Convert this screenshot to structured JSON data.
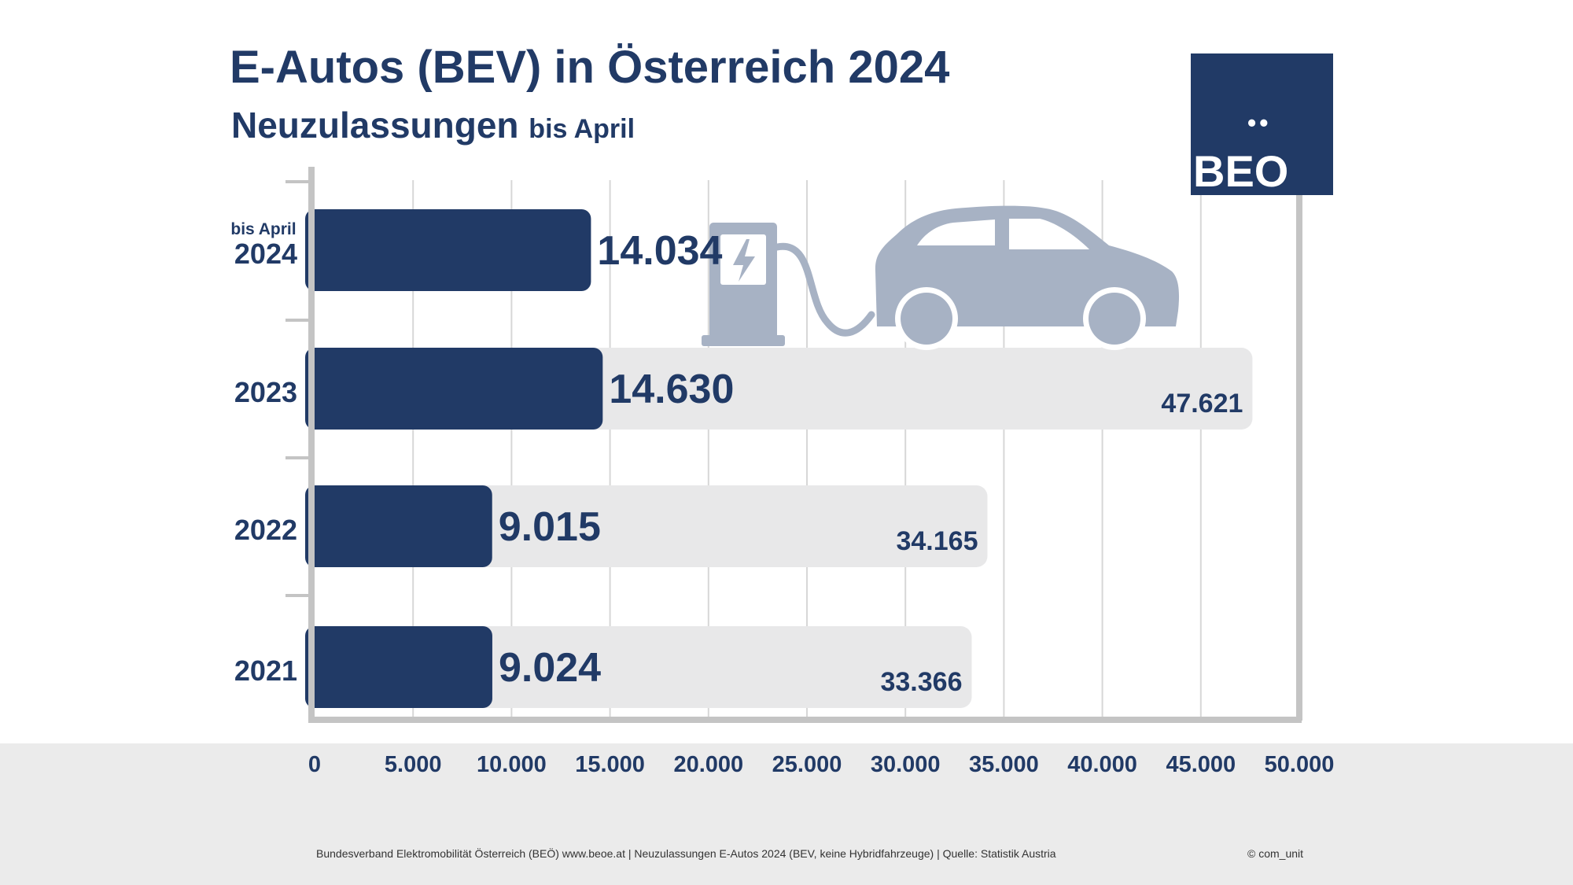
{
  "header": {
    "title": "E-Autos (BEV) in Österreich 2024",
    "subtitle": "Neuzulassungen",
    "subtitle_small": "bis April"
  },
  "logo": {
    "text": "BEO",
    "dots": "••"
  },
  "chart_data": {
    "type": "bar",
    "orientation": "horizontal",
    "categories": [
      "2024",
      "2023",
      "2022",
      "2021"
    ],
    "category_sublabels": [
      "bis April",
      "",
      "",
      ""
    ],
    "series": [
      {
        "values": [
          14034,
          14630,
          9015,
          9024
        ],
        "labels": [
          "14.034",
          "14.630",
          "9.015",
          "9.024"
        ],
        "color": "#213a66"
      },
      {
        "values": [
          null,
          47621,
          34165,
          33366
        ],
        "labels": [
          "",
          "47.621",
          "34.165",
          "33.366"
        ],
        "color": "#e8e8e9"
      }
    ],
    "xlim": [
      0,
      50000
    ],
    "xticks": [
      0,
      5000,
      10000,
      15000,
      20000,
      25000,
      30000,
      35000,
      40000,
      45000,
      50000
    ],
    "xtick_labels": [
      "0",
      "5.000",
      "10.000",
      "15.000",
      "20.000",
      "25.000",
      "30.000",
      "35.000",
      "40.000",
      "45.000",
      "50.000"
    ],
    "grid": true
  },
  "footer": {
    "source": "Bundesverband Elektromobilität Österreich (BEÖ) www.beoe.at | Neuzulassungen E-Autos 2024 (BEV, keine Hybridfahrzeuge) | Quelle: Statistik Austria",
    "copyright": "© com_unit"
  },
  "colors": {
    "primary": "#213a66",
    "track": "#e8e8e9",
    "grid": "#d7d7d7",
    "axis": "#c4c4c4",
    "illustration": "#a7b2c4",
    "band": "#ebebeb"
  },
  "icons": [
    "charging-station-icon",
    "electric-car-icon"
  ]
}
